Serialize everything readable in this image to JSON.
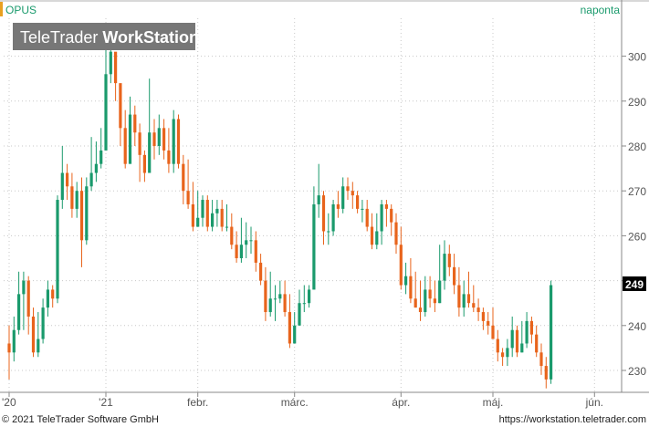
{
  "header": {
    "symbol": "OPUS",
    "period": "naponta",
    "watermark_part1": "TeleTrader ",
    "watermark_part2": "WorkStation"
  },
  "footer": {
    "copyright": "© 2021 TeleTrader Software GmbH",
    "url": "https://workstation.teletrader.com"
  },
  "colors": {
    "up": "#1a9a6c",
    "down": "#e8641c",
    "grid": "#c8c8c8",
    "axis_text": "#555555",
    "symbol_text": "#1a9a6c",
    "last_price_bg": "#000000",
    "last_price_text": "#ffffff",
    "watermark_bg": "#777777",
    "left_marker": "#e8a020"
  },
  "chart_data": {
    "type": "candlestick",
    "title": "OPUS",
    "ylim": [
      225,
      308
    ],
    "y_ticks": [
      230,
      240,
      250,
      260,
      270,
      280,
      290,
      300
    ],
    "x_ticks": [
      {
        "label": "'20",
        "index": 0
      },
      {
        "label": "'21",
        "index": 20
      },
      {
        "label": "febr.",
        "index": 39
      },
      {
        "label": "márc.",
        "index": 59
      },
      {
        "label": "ápr.",
        "index": 81
      },
      {
        "label": "máj.",
        "index": 100
      },
      {
        "label": "jún.",
        "index": 121
      }
    ],
    "last_price": "249",
    "candles": [
      [
        236,
        234,
        240,
        228
      ],
      [
        234,
        239,
        242,
        232
      ],
      [
        239,
        247,
        252,
        238
      ],
      [
        247,
        250,
        252,
        239
      ],
      [
        250,
        242,
        251,
        238
      ],
      [
        242,
        234,
        244,
        233
      ],
      [
        234,
        237,
        243,
        233
      ],
      [
        237,
        244,
        246,
        236
      ],
      [
        244,
        248,
        250,
        242
      ],
      [
        248,
        246,
        249,
        244
      ],
      [
        246,
        268,
        269,
        245
      ],
      [
        268,
        274,
        280,
        266
      ],
      [
        274,
        271,
        276,
        268
      ],
      [
        271,
        266,
        274,
        264
      ],
      [
        266,
        270,
        272,
        264
      ],
      [
        270,
        259,
        273,
        253
      ],
      [
        259,
        271,
        273,
        258
      ],
      [
        271,
        274,
        282,
        270
      ],
      [
        274,
        276,
        281,
        272
      ],
      [
        276,
        279,
        284,
        275
      ],
      [
        279,
        296,
        307,
        287
      ],
      [
        296,
        301,
        305,
        294
      ],
      [
        301,
        294,
        299,
        290
      ],
      [
        294,
        284,
        292,
        280
      ],
      [
        284,
        276,
        288,
        275
      ],
      [
        276,
        287,
        291,
        281
      ],
      [
        287,
        283,
        289,
        280
      ],
      [
        283,
        278,
        285,
        272
      ],
      [
        278,
        274,
        279,
        272
      ],
      [
        274,
        283,
        295,
        280
      ],
      [
        283,
        280,
        286,
        277
      ],
      [
        280,
        284,
        287,
        278
      ],
      [
        284,
        279,
        286,
        277
      ],
      [
        279,
        276,
        284,
        274
      ],
      [
        276,
        286,
        288,
        274
      ],
      [
        286,
        276,
        287,
        275
      ],
      [
        276,
        270,
        278,
        267
      ],
      [
        270,
        267,
        277,
        266
      ],
      [
        267,
        262,
        272,
        261
      ],
      [
        262,
        264,
        270,
        262
      ],
      [
        264,
        268,
        269,
        262
      ],
      [
        268,
        262,
        269,
        261
      ],
      [
        262,
        265,
        268,
        261
      ],
      [
        265,
        266,
        268,
        262
      ],
      [
        266,
        262,
        268,
        261
      ],
      [
        262,
        262,
        267,
        261
      ],
      [
        262,
        258,
        265,
        257
      ],
      [
        258,
        255,
        261,
        254
      ],
      [
        255,
        258,
        264,
        254
      ],
      [
        258,
        259,
        263,
        255
      ],
      [
        259,
        259,
        262,
        256
      ],
      [
        259,
        254,
        261,
        252
      ],
      [
        254,
        250,
        256,
        249
      ],
      [
        250,
        243,
        253,
        241
      ],
      [
        243,
        246,
        252,
        242
      ],
      [
        246,
        246,
        249,
        241
      ],
      [
        246,
        247,
        250,
        245
      ],
      [
        247,
        243,
        250,
        242
      ],
      [
        243,
        236,
        247,
        235
      ],
      [
        236,
        240,
        243,
        236
      ],
      [
        240,
        245,
        248,
        240
      ],
      [
        245,
        245,
        249,
        243
      ],
      [
        245,
        248,
        249,
        244
      ],
      [
        248,
        267,
        271,
        263
      ],
      [
        267,
        269,
        276,
        264
      ],
      [
        269,
        261,
        270,
        258
      ],
      [
        261,
        261,
        265,
        258
      ],
      [
        261,
        267,
        268,
        260
      ],
      [
        267,
        266,
        270,
        264
      ],
      [
        266,
        271,
        273,
        265
      ],
      [
        271,
        270,
        273,
        268
      ],
      [
        270,
        269,
        272,
        266
      ],
      [
        269,
        266,
        270,
        265
      ],
      [
        266,
        266,
        268,
        263
      ],
      [
        266,
        262,
        268,
        261
      ],
      [
        262,
        258,
        265,
        257
      ],
      [
        258,
        261,
        265,
        257
      ],
      [
        261,
        267,
        268,
        258
      ],
      [
        267,
        266,
        268,
        262
      ],
      [
        266,
        263,
        267,
        260
      ],
      [
        263,
        258,
        265,
        256
      ],
      [
        258,
        249,
        262,
        248
      ],
      [
        249,
        251,
        254,
        247
      ],
      [
        251,
        246,
        255,
        245
      ],
      [
        246,
        244,
        252,
        244
      ],
      [
        244,
        243,
        250,
        241
      ],
      [
        243,
        248,
        251,
        242
      ],
      [
        248,
        246,
        251,
        244
      ],
      [
        246,
        245,
        250,
        243
      ],
      [
        245,
        250,
        258,
        245
      ],
      [
        250,
        256,
        259,
        248
      ],
      [
        256,
        253,
        258,
        251
      ],
      [
        253,
        249,
        256,
        247
      ],
      [
        249,
        244,
        253,
        242
      ],
      [
        244,
        247,
        250,
        242
      ],
      [
        247,
        245,
        252,
        244
      ],
      [
        245,
        244,
        249,
        243
      ],
      [
        244,
        243,
        246,
        241
      ],
      [
        243,
        241,
        244,
        239
      ],
      [
        241,
        240,
        243,
        238
      ],
      [
        240,
        237,
        244,
        237
      ],
      [
        237,
        234,
        239,
        232
      ],
      [
        234,
        233,
        235,
        231
      ],
      [
        233,
        235,
        237,
        231
      ],
      [
        235,
        239,
        242,
        233
      ],
      [
        239,
        234,
        240,
        233
      ],
      [
        234,
        236,
        241,
        234
      ],
      [
        236,
        241,
        243,
        235
      ],
      [
        241,
        238,
        242,
        236
      ],
      [
        238,
        234,
        240,
        233
      ],
      [
        234,
        231,
        236,
        229
      ],
      [
        231,
        228,
        233,
        226
      ],
      [
        228,
        249,
        250,
        227
      ]
    ]
  }
}
